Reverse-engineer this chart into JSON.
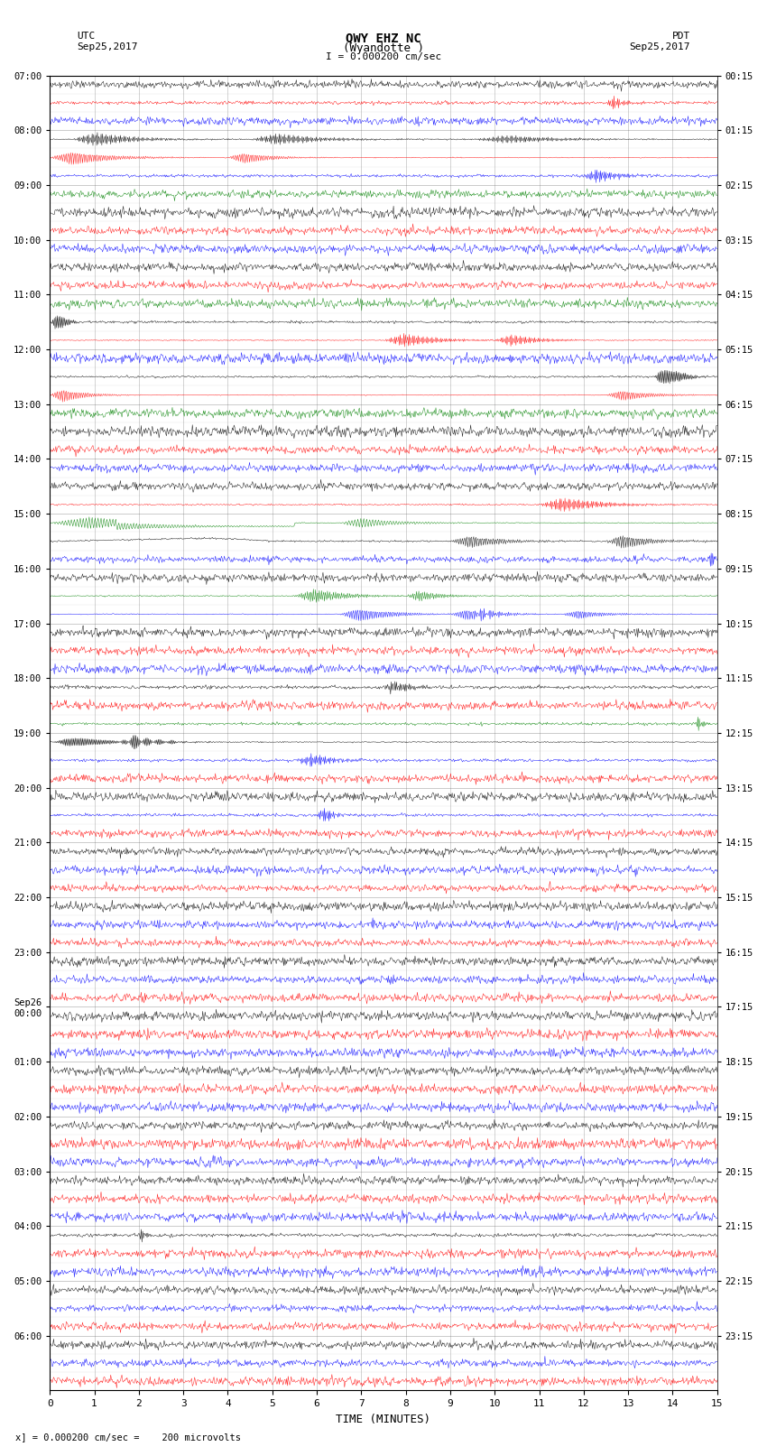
{
  "title_line1": "QWY EHZ NC",
  "title_line2": "(Wyandotte )",
  "scale_label": "I = 0.000200 cm/sec",
  "left_label_line1": "UTC",
  "left_label_line2": "Sep25,2017",
  "right_label_line1": "PDT",
  "right_label_line2": "Sep25,2017",
  "bottom_label": "TIME (MINUTES)",
  "bottom_note": "x] = 0.000200 cm/sec =    200 microvolts",
  "xlabel_ticks": [
    0,
    1,
    2,
    3,
    4,
    5,
    6,
    7,
    8,
    9,
    10,
    11,
    12,
    13,
    14,
    15
  ],
  "utc_times": [
    "07:00",
    "08:00",
    "09:00",
    "10:00",
    "11:00",
    "12:00",
    "13:00",
    "14:00",
    "15:00",
    "16:00",
    "17:00",
    "18:00",
    "19:00",
    "20:00",
    "21:00",
    "22:00",
    "23:00",
    "Sep26\n00:00",
    "01:00",
    "02:00",
    "03:00",
    "04:00",
    "05:00",
    "06:00"
  ],
  "pdt_times": [
    "00:15",
    "01:15",
    "02:15",
    "03:15",
    "04:15",
    "05:15",
    "06:15",
    "07:15",
    "08:15",
    "09:15",
    "10:15",
    "11:15",
    "12:15",
    "13:15",
    "14:15",
    "15:15",
    "16:15",
    "17:15",
    "18:15",
    "19:15",
    "20:15",
    "21:15",
    "22:15",
    "23:15"
  ],
  "n_hour_rows": 24,
  "traces_per_hour": 3,
  "bg_color": "#ffffff",
  "fig_width": 8.5,
  "fig_height": 16.13
}
